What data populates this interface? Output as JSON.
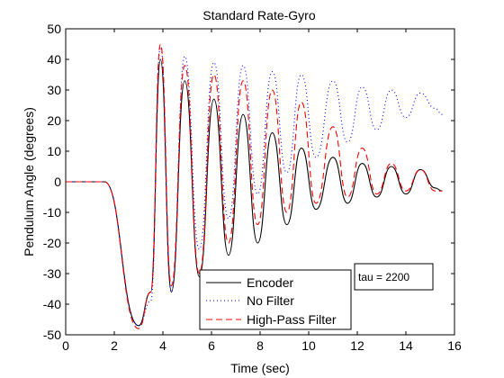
{
  "chart_data": {
    "type": "line",
    "title": "Standard Rate-Gyro",
    "xlabel": "Time (sec)",
    "ylabel": "Pendulum Angle (degrees)",
    "xlim": [
      0,
      16
    ],
    "ylim": [
      -50,
      50
    ],
    "xticks": [
      0,
      2,
      4,
      6,
      8,
      10,
      12,
      14,
      16
    ],
    "yticks": [
      -50,
      -40,
      -30,
      -20,
      -10,
      0,
      10,
      20,
      30,
      40,
      50
    ],
    "grid": false,
    "legend_position": "bottom-center",
    "annotation": "tau = 2200",
    "series": [
      {
        "name": "Encoder",
        "color": "#000000",
        "style": "solid",
        "x": [
          0,
          1.6,
          3.0,
          3.5,
          3.9,
          4.35,
          4.9,
          5.5,
          6.1,
          6.7,
          7.3,
          7.9,
          8.5,
          9.1,
          9.7,
          10.3,
          11.0,
          11.6,
          12.2,
          12.8,
          13.4,
          14.0,
          14.6,
          15.2,
          15.5
        ],
        "y": [
          0,
          0,
          -47,
          -36,
          40,
          -36,
          33,
          -31,
          27,
          -24,
          22,
          -20,
          16,
          -14,
          11,
          -9,
          8,
          -7,
          6,
          -5,
          5,
          -4,
          4,
          -2,
          -3
        ]
      },
      {
        "name": "No Filter",
        "color": "#0000ff",
        "style": "dotted",
        "x": [
          0,
          1.6,
          3.0,
          3.5,
          3.9,
          4.35,
          4.9,
          5.5,
          6.1,
          6.7,
          7.3,
          7.9,
          8.5,
          9.1,
          9.7,
          10.3,
          11.0,
          11.6,
          12.2,
          12.8,
          13.4,
          14.0,
          14.6,
          15.2,
          15.5
        ],
        "y": [
          0,
          0,
          -47,
          -39,
          44,
          -36,
          41,
          -22,
          39,
          -12,
          38,
          -4,
          36,
          3,
          35,
          8,
          33,
          13,
          31,
          17,
          30,
          21,
          29,
          24,
          22
        ]
      },
      {
        "name": "High-Pass Filter",
        "color": "#ff0000",
        "style": "dashed",
        "x": [
          0,
          1.6,
          3.0,
          3.5,
          3.9,
          4.35,
          4.9,
          5.5,
          6.1,
          6.7,
          7.3,
          7.9,
          8.5,
          9.1,
          9.7,
          10.3,
          11.0,
          11.6,
          12.2,
          12.8,
          13.4,
          14.0,
          14.6,
          15.2,
          15.5
        ],
        "y": [
          0,
          0,
          -48,
          -36,
          45,
          -34,
          38,
          -30,
          35,
          -20,
          33,
          -14,
          30,
          -10,
          26,
          -7,
          18,
          -5,
          11,
          -4,
          6,
          -3,
          4,
          -3,
          -3
        ]
      }
    ]
  }
}
